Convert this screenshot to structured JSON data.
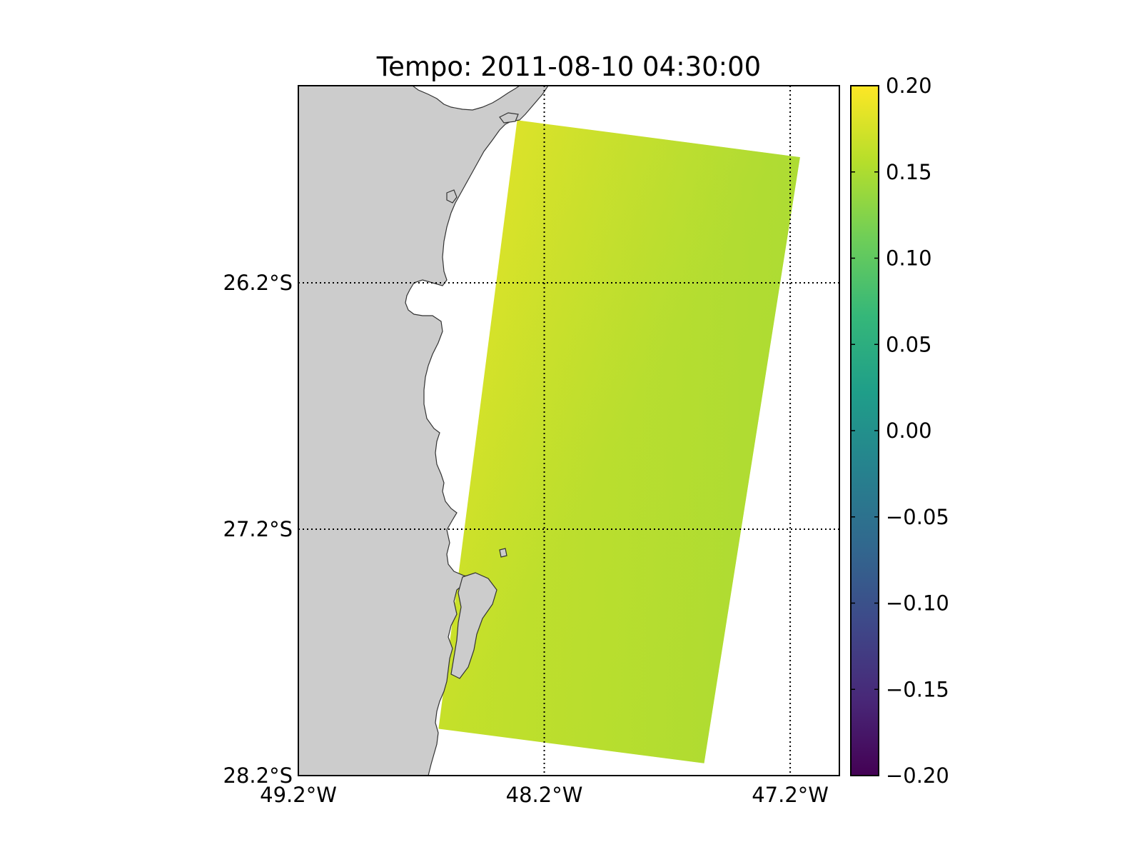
{
  "chart_data": {
    "type": "heatmap",
    "title": "Tempo: 2011-08-10 04:30:00",
    "xlabel": "",
    "ylabel": "",
    "xlim": [
      -49.2,
      -47.0
    ],
    "ylim": [
      -28.2,
      -25.4
    ],
    "x_ticks": [
      {
        "value": -49.2,
        "label": "49.2°W"
      },
      {
        "value": -48.2,
        "label": "48.2°W"
      },
      {
        "value": -47.2,
        "label": "47.2°W"
      }
    ],
    "y_ticks": [
      {
        "value": -26.2,
        "label": "26.2°S"
      },
      {
        "value": -27.2,
        "label": "27.2°S"
      },
      {
        "value": -28.2,
        "label": "28.2°S"
      }
    ],
    "grid": true,
    "data_region": {
      "corners_lonlat": [
        [
          -48.31,
          -25.54
        ],
        [
          -47.16,
          -25.69
        ],
        [
          -47.55,
          -28.15
        ],
        [
          -48.63,
          -28.01
        ]
      ],
      "value_range": [
        0.14,
        0.19
      ],
      "corner_values": {
        "nw": 0.19,
        "ne": 0.14,
        "se": 0.16,
        "sw": 0.17
      }
    },
    "colorbar": {
      "colormap": "viridis",
      "vmin": -0.2,
      "vmax": 0.2,
      "ticks": [
        "0.20",
        "0.15",
        "0.10",
        "0.05",
        "0.00",
        "−0.05",
        "−0.10",
        "−0.15",
        "−0.20"
      ],
      "tick_values": [
        0.2,
        0.15,
        0.1,
        0.05,
        0.0,
        -0.05,
        -0.1,
        -0.15,
        -0.2
      ],
      "colors": [
        "#440154",
        "#482878",
        "#3e4989",
        "#31688e",
        "#26828e",
        "#1f9e89",
        "#35b779",
        "#6ece58",
        "#b5de2b",
        "#fde725"
      ]
    },
    "land_color": "#cccccc",
    "coastline_color": "#333333"
  }
}
